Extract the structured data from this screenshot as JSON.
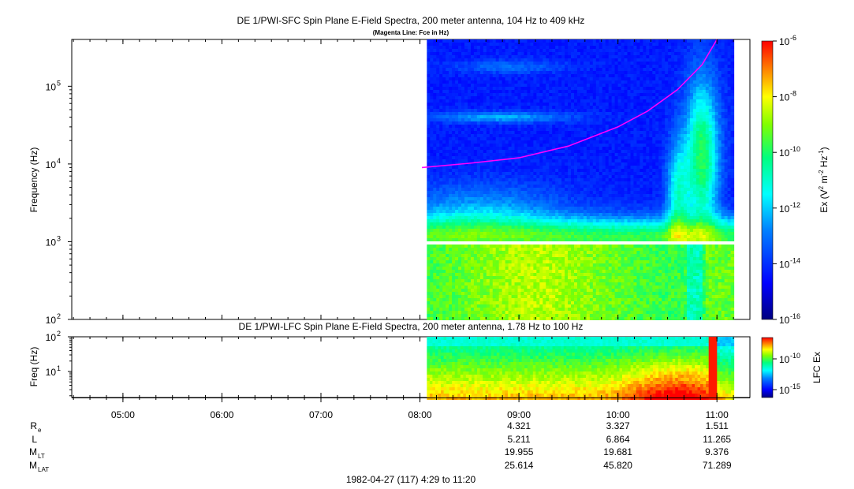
{
  "chart_data": [
    {
      "type": "heatmap",
      "title": "DE 1/PWI-SFC  Spin Plane E-Field Spectra, 200 meter antenna, 104 Hz to 409 kHz",
      "subtitle": "(Magenta Line: Fce in Hz)",
      "ylabel": "Frequency (Hz)",
      "y_scale": "log",
      "ylim_hz": [
        100,
        400000
      ],
      "y_ticks": [
        "10",
        "10",
        "10",
        "10"
      ],
      "y_tick_exps": [
        "2",
        "3",
        "4",
        "5"
      ],
      "colorbar": {
        "label_main": "Ex (V",
        "label_sup1": "2",
        "label_mid": " m",
        "label_sup2": "-2",
        "label_mid2": " Hz",
        "label_sup3": "-1",
        "label_end": ")",
        "ticks": [
          "10",
          "10",
          "10",
          "10",
          "10",
          "10"
        ],
        "tick_exps": [
          "-6",
          "-8",
          "-10",
          "-12",
          "-14",
          "-16"
        ],
        "log_range": [
          -16,
          -6
        ]
      },
      "data_coverage_hours": [
        8.07,
        11.17
      ],
      "data_gap_hz": [
        900,
        1050
      ],
      "fce_curve": {
        "color": "#ff00ff",
        "hours": [
          8.02,
          8.5,
          9.0,
          9.5,
          10.0,
          10.3,
          10.6,
          10.85,
          11.0
        ],
        "hz": [
          9000,
          10200,
          12000,
          17000,
          30000,
          48000,
          90000,
          190000,
          400000
        ]
      }
    },
    {
      "type": "heatmap",
      "title": "DE 1/PWI-LFC  Spin Plane E-Field Spectra, 200 meter antenna, 1.78 Hz to 100 Hz",
      "ylabel": "Freq (Hz)",
      "y_scale": "log",
      "ylim_hz": [
        1.78,
        100
      ],
      "y_ticks": [
        "10",
        "10"
      ],
      "y_tick_exps": [
        "2",
        "1"
      ],
      "colorbar": {
        "label": "LFC Ex",
        "ticks": [
          "10",
          "10"
        ],
        "tick_exps": [
          "-10",
          "-15"
        ]
      },
      "data_coverage_hours": [
        8.07,
        11.17
      ]
    }
  ],
  "x_axis": {
    "range_hours": [
      4.483,
      11.333
    ],
    "tick_labels": [
      "05:00",
      "06:00",
      "07:00",
      "08:00",
      "09:00",
      "10:00",
      "11:00"
    ],
    "tick_hours": [
      5,
      6,
      7,
      8,
      9,
      10,
      11
    ]
  },
  "ephemeris": {
    "rows": [
      {
        "label": "R",
        "sub": "e",
        "values": [
          "4.321",
          "3.327",
          "1.511"
        ]
      },
      {
        "label": "L",
        "sub": "",
        "values": [
          "5.211",
          "6.864",
          "11.265"
        ]
      },
      {
        "label": "M",
        "sub": "LT",
        "values": [
          "19.955",
          "19.681",
          "9.376"
        ]
      },
      {
        "label": "M",
        "sub": "LAT",
        "values": [
          "25.614",
          "45.820",
          "71.289"
        ]
      }
    ],
    "value_hours": [
      9,
      10,
      11
    ]
  },
  "footer": "1982-04-27 (117) 4:29 to 11:20"
}
